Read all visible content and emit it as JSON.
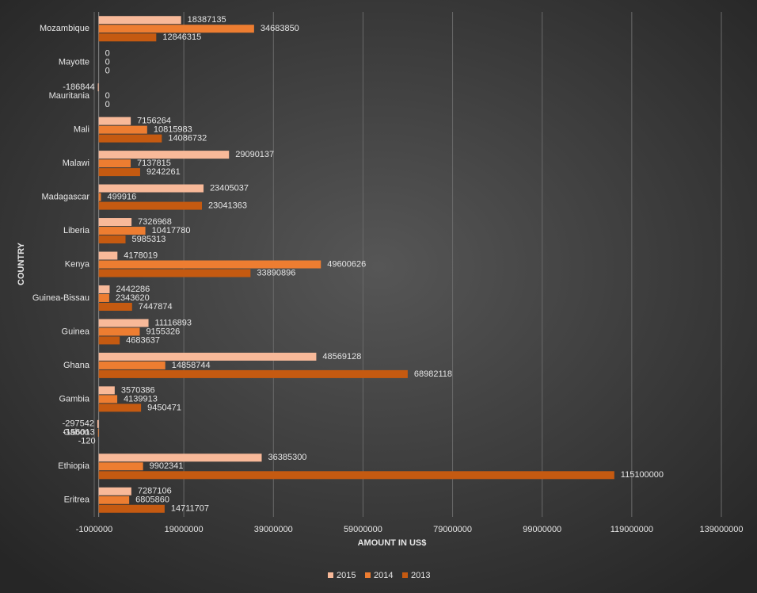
{
  "chart_data": {
    "type": "hbar",
    "x_label": "AMOUNT IN US$",
    "y_label": "COUNTRY",
    "categories": [
      "Mozambique",
      "Mayotte",
      "Mauritania",
      "Mali",
      "Malawi",
      "Madagascar",
      "Liberia",
      "Kenya",
      "Guinea-Bissau",
      "Guinea",
      "Ghana",
      "Gambia",
      "Gabon",
      "Ethiopia",
      "Eritrea"
    ],
    "series": [
      {
        "name": "2015",
        "color": "#f8b999",
        "values": [
          18387135,
          0,
          -186844,
          7156264,
          29090137,
          23405037,
          7326968,
          4178019,
          2442286,
          11116893,
          48569128,
          3570386,
          -297542,
          36385300,
          7287106
        ]
      },
      {
        "name": "2014",
        "color": "#ed7d31",
        "values": [
          34683850,
          0,
          0,
          10815983,
          7137815,
          499916,
          10417780,
          49600626,
          2343620,
          9155326,
          14858744,
          4139913,
          -156013,
          9902341,
          6805860
        ]
      },
      {
        "name": "2013",
        "color": "#c55a11",
        "values": [
          12846315,
          0,
          0,
          14086732,
          9242261,
          23041363,
          5985313,
          33890896,
          7447874,
          4683637,
          68982118,
          9450471,
          -120,
          115100000,
          14711707
        ]
      }
    ],
    "xlim": [
      -1000000,
      139000000
    ],
    "xticks": [
      -1000000,
      19000000,
      39000000,
      59000000,
      79000000,
      99000000,
      119000000,
      139000000
    ],
    "grid": true,
    "legend": "bottom"
  }
}
